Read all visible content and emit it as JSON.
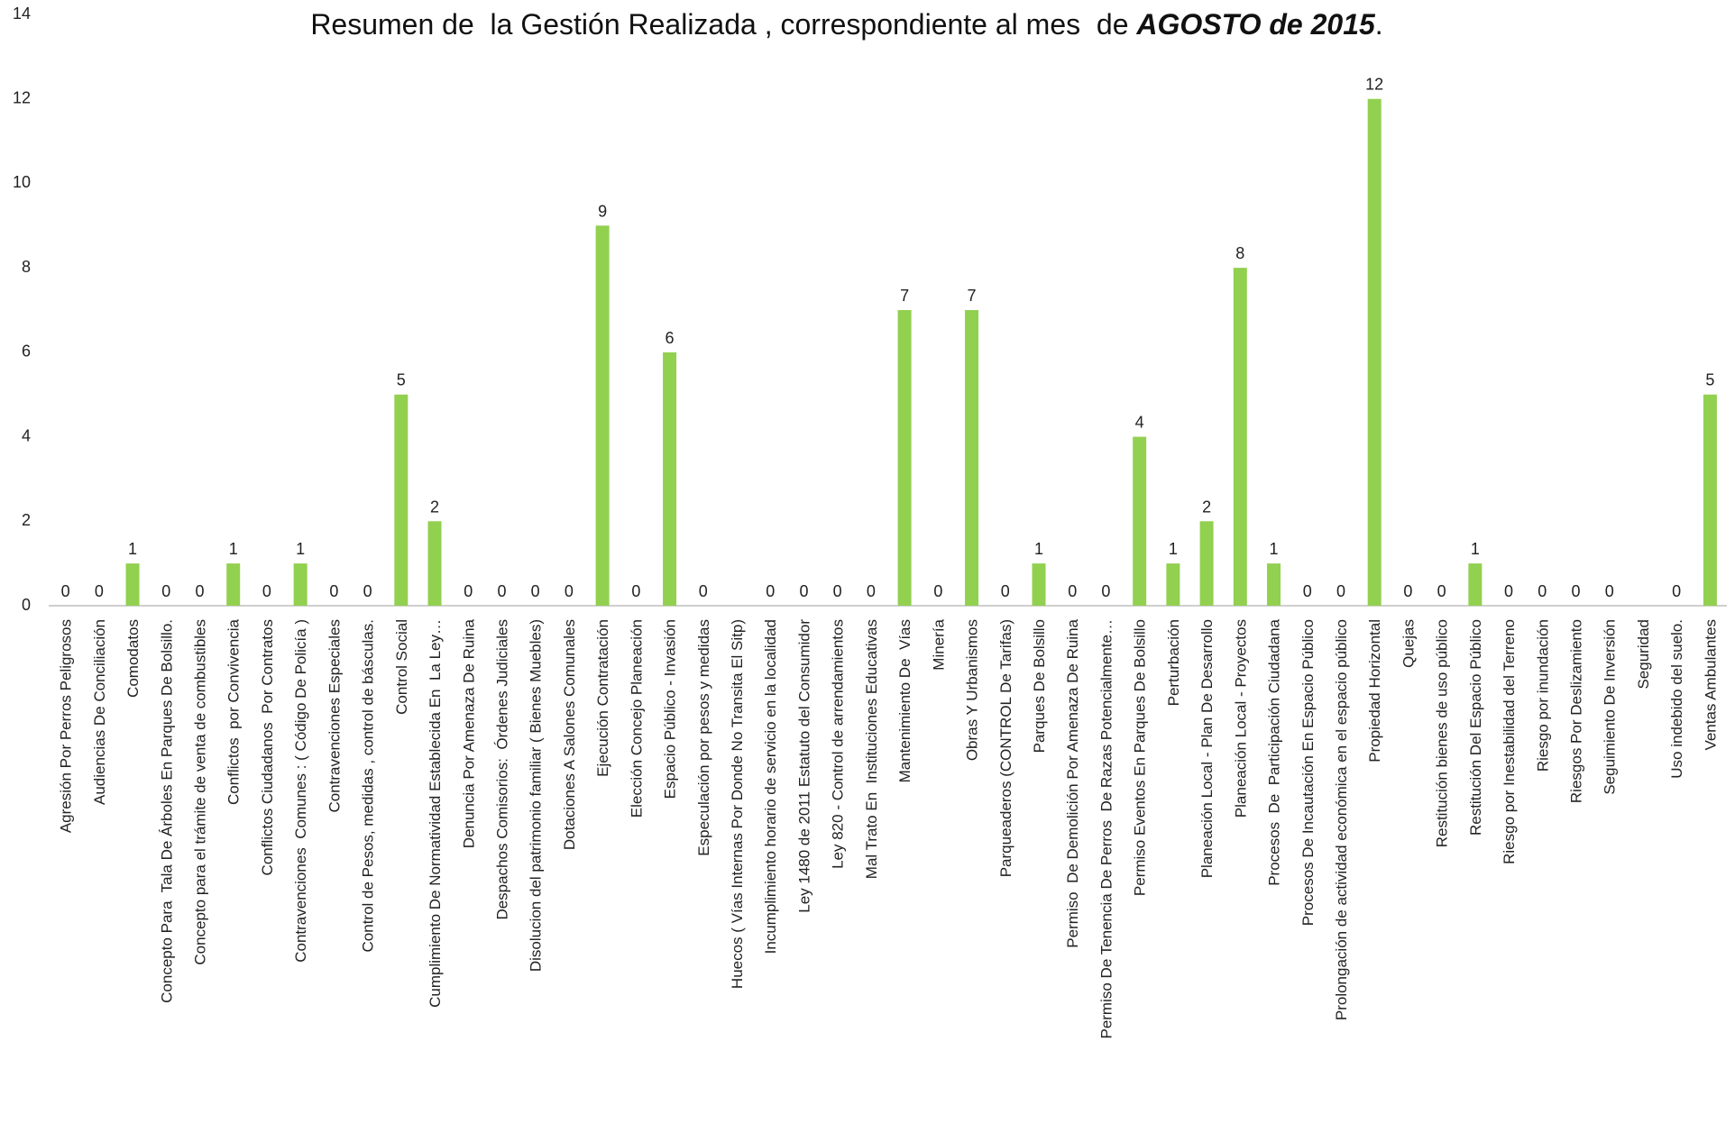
{
  "chart_data": {
    "type": "bar",
    "title": [
      "Resumen de  la Gestión Realizada , correspondiente al mes  de ",
      "AGOSTO de 2015",
      "."
    ],
    "categories": [
      "Agresión Por Perros Peligrosos",
      "Audiencias De Conciliación",
      "Comodatos",
      "Concepto Para  Tala De Árboles En Parques De Bolsillo.",
      "Concepto para el trámite de venta de combustibles",
      "Conflictos  por Convivencia",
      "Conflictos Ciudadanos  Por Contratos",
      "Contravenciones  Comunes : ( Código De Policía )",
      "Contravenciones Especiales",
      "Control de Pesos, medidas , control de básculas.",
      "Control Social",
      "Cumplimiento De Normatividad Establecida En  La Ley…",
      "Denuncia Por Amenaza De Ruina",
      "Despachos Comisorios:  Órdenes Judiciales",
      "Disolucion del patrimonio familiar ( Bienes Muebles)",
      "Dotaciones A Salones Comunales",
      "Ejecución Contratación",
      "Elección Concejo Planeación",
      "Espacio Público - Invasión",
      "Especulación por pesos y medidas",
      "Huecos ( Vías Internas Por Donde No Transita El Sitp)",
      "Incumplimiento horario de servicio en la localidad",
      "Ley 1480 de 2011 Estatuto del Consumidor",
      "Ley 820 - Control de arrendamientos",
      "Mal Trato En  Instituciones Educativas",
      "Mantenimiento De  Vías",
      "Minería",
      "Obras Y Urbanismos",
      "Parqueaderos (CONTROL De Tarifas)",
      "Parques De Bolsillo",
      "Permiso  De Demolición Por Amenaza De Ruina",
      "Permiso De Tenencia De Perros  De Razas Potencialmente…",
      "Permiso Eventos En Parques De Bolsillo",
      "Perturbación",
      "Planeación Local - Plan De Desarrollo",
      "Planeación Local - Proyectos",
      "Procesos  De  Participación Ciudadana",
      "Procesos De Incautación En Espacio Público",
      "Prolongación de actividad económica en el espacio público",
      "Propiedad Horizontal",
      "Quejas",
      "Restitución bienes de uso público",
      "Restitución Del Espacio Público",
      "Riesgo por Inestabilidad del Terreno",
      "Riesgo por inundación",
      "Riesgos Por Deslizamiento",
      "Seguimiento De Inversión",
      "Seguridad",
      "Uso indebido del suelo.",
      "Ventas Ambulantes"
    ],
    "values": [
      0,
      0,
      1,
      0,
      0,
      1,
      0,
      1,
      0,
      0,
      5,
      2,
      0,
      0,
      0,
      0,
      9,
      0,
      6,
      0,
      null,
      0,
      0,
      0,
      0,
      7,
      0,
      7,
      0,
      1,
      0,
      0,
      4,
      1,
      2,
      8,
      1,
      0,
      0,
      12,
      0,
      0,
      1,
      0,
      0,
      0,
      0,
      null,
      0,
      5
    ],
    "color": "#92d050",
    "ylim": [
      0,
      14
    ],
    "yticks": [
      0,
      2,
      4,
      6,
      8,
      10,
      12,
      14
    ],
    "grid": false
  }
}
